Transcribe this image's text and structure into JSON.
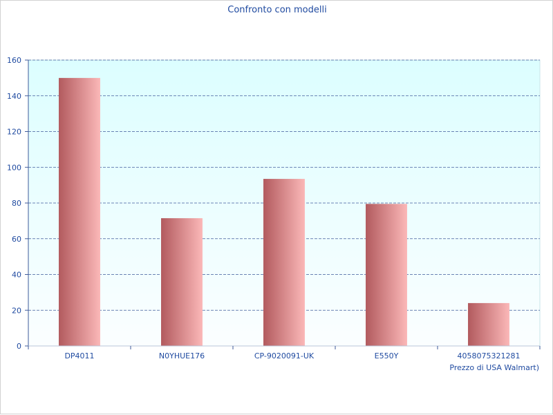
{
  "chart_data": {
    "type": "bar",
    "title": "Confronto con modelli",
    "xlabel": "Prezzo di USA Walmart)",
    "ylabel": "",
    "categories": [
      "DP4011",
      "N0YHUE176",
      "CP-9020091-UK",
      "E550Y",
      "4058075321281"
    ],
    "values": [
      150,
      71.5,
      93.5,
      79.5,
      24
    ],
    "ylim": [
      0,
      160
    ],
    "yticks": [
      0,
      20,
      40,
      60,
      80,
      100,
      120,
      140,
      160
    ],
    "grid": true,
    "legend": "none"
  },
  "colors": {
    "text": "#1f4aa0",
    "plot_bg_top": "#dcfeff",
    "plot_bg_bottom": "#fbfeff",
    "bar_dark": "#b25a5e",
    "bar_light": "#fbb8b8",
    "grid": "#3d5a9a"
  }
}
